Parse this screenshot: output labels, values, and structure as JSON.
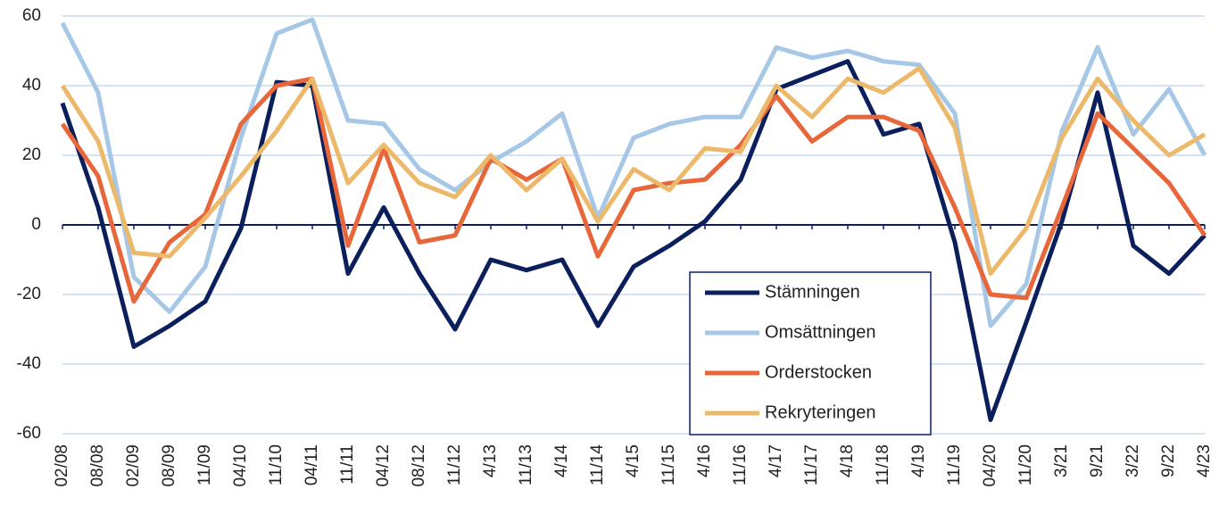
{
  "chart_data": {
    "type": "line",
    "categories": [
      "02/08",
      "08/08",
      "02/09",
      "08/09",
      "11/09",
      "04/10",
      "11/10",
      "04/11",
      "11/11",
      "04/12",
      "08/12",
      "11/12",
      "4/13",
      "11/13",
      "4/14",
      "11/14",
      "4/15",
      "11/15",
      "4/16",
      "11/16",
      "4/17",
      "11/17",
      "4/18",
      "11/18",
      "4/19",
      "11/19",
      "04/20",
      "11/20",
      "3/21",
      "9/21",
      "3/22",
      "9/22",
      "4/23"
    ],
    "series": [
      {
        "name": "Stämningen",
        "color": "#0b1f5c",
        "values": [
          35,
          5,
          -35,
          -29,
          -22,
          -1,
          41,
          40,
          -14,
          5,
          -14,
          -30,
          -10,
          -13,
          -10,
          -29,
          -12,
          -6,
          1,
          13,
          39,
          43,
          47,
          26,
          29,
          -5,
          -56,
          -28,
          1,
          38,
          -6,
          -14,
          -3
        ]
      },
      {
        "name": "Omsättningen",
        "color": "#a6c8e6",
        "values": [
          58,
          38,
          -15,
          -25,
          -12,
          25,
          55,
          59,
          30,
          29,
          16,
          10,
          18,
          24,
          32,
          2,
          25,
          29,
          31,
          31,
          51,
          48,
          50,
          47,
          46,
          32,
          -29,
          -17,
          27,
          51,
          26,
          39,
          20
        ]
      },
      {
        "name": "Orderstocken",
        "color": "#e8673a",
        "values": [
          29,
          14,
          -22,
          -5,
          3,
          29,
          40,
          42,
          -6,
          22,
          -5,
          -3,
          19,
          13,
          19,
          -9,
          10,
          12,
          13,
          23,
          37,
          24,
          31,
          31,
          27,
          5,
          -20,
          -21,
          5,
          32,
          22,
          12,
          -3
        ]
      },
      {
        "name": "Rekryteringen",
        "color": "#ecb96a",
        "values": [
          40,
          24,
          -8,
          -9,
          2,
          14,
          27,
          42,
          12,
          23,
          12,
          8,
          20,
          10,
          19,
          1,
          16,
          10,
          22,
          21,
          40,
          31,
          42,
          38,
          45,
          28,
          -14,
          -1,
          25,
          42,
          30,
          20,
          26
        ]
      }
    ],
    "ylim": [
      -60,
      60
    ],
    "yticks": [
      -60,
      -40,
      -20,
      0,
      20,
      40,
      60
    ],
    "grid": true,
    "legend": "lower right"
  }
}
